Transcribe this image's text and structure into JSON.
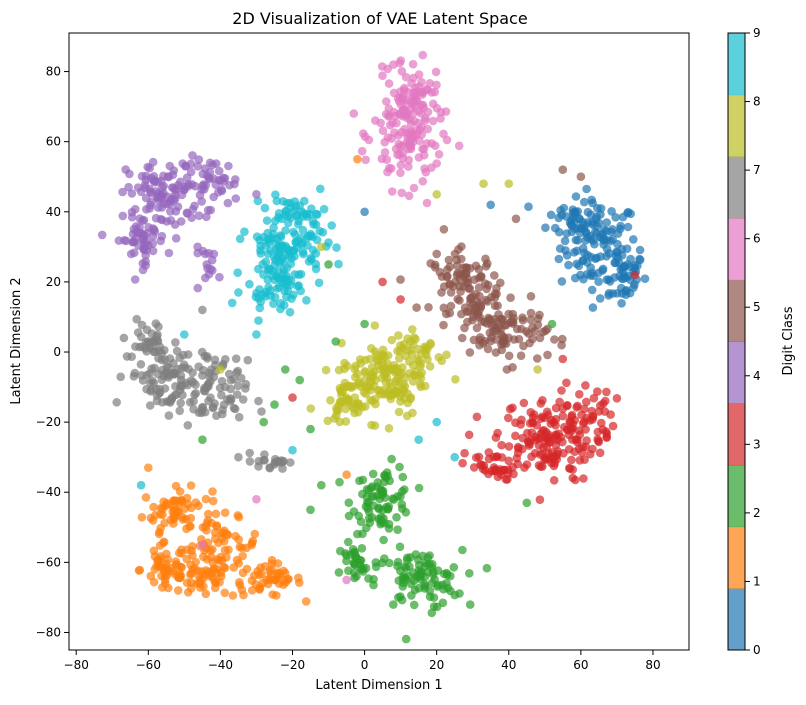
{
  "chart_data": {
    "type": "scatter",
    "title": "2D Visualization of VAE Latent Space",
    "xlabel": "Latent Dimension 1",
    "ylabel": "Latent Dimension 2",
    "xlim": [
      -82,
      90
    ],
    "ylim": [
      -85,
      91
    ],
    "xticks": [
      -80,
      -60,
      -40,
      -20,
      0,
      20,
      40,
      60,
      80
    ],
    "yticks": [
      -80,
      -60,
      -40,
      -20,
      0,
      20,
      40,
      60,
      80
    ],
    "xtick_labels": [
      "−80",
      "−60",
      "−40",
      "−20",
      "0",
      "20",
      "40",
      "60",
      "80"
    ],
    "ytick_labels": [
      "−80",
      "−60",
      "−40",
      "−20",
      "0",
      "20",
      "40",
      "60",
      "80"
    ],
    "grid": false,
    "marker_alpha": 0.7,
    "colorbar": {
      "label": "Digit Class",
      "range": [
        0,
        9
      ],
      "ticks": [
        0,
        1,
        2,
        3,
        4,
        5,
        6,
        7,
        8,
        9
      ],
      "tick_labels": [
        "0",
        "1",
        "2",
        "3",
        "4",
        "5",
        "6",
        "7",
        "8",
        "9"
      ],
      "colors": [
        "#1f77b4",
        "#ff7f0e",
        "#2ca02c",
        "#d62728",
        "#9467bd",
        "#8c564b",
        "#e377c2",
        "#7f7f7f",
        "#bcbd22",
        "#17becf"
      ]
    },
    "clusters": [
      {
        "class": 0,
        "blobs": [
          [
            65,
            30,
            9,
            11,
            110
          ],
          [
            71,
            22,
            6,
            8,
            40
          ],
          [
            58,
            38,
            6,
            5,
            30
          ]
        ]
      },
      {
        "class": 1,
        "blobs": [
          [
            -52,
            -45,
            8,
            5,
            60
          ],
          [
            -40,
            -55,
            9,
            6,
            60
          ],
          [
            -27,
            -65,
            8,
            4,
            50
          ],
          [
            -55,
            -62,
            6,
            6,
            50
          ],
          [
            -45,
            -65,
            7,
            4,
            40
          ]
        ]
      },
      {
        "class": 2,
        "blobs": [
          [
            5,
            -42,
            7,
            8,
            80
          ],
          [
            15,
            -65,
            10,
            7,
            90
          ],
          [
            -2,
            -60,
            5,
            5,
            30
          ]
        ]
      },
      {
        "class": 3,
        "blobs": [
          [
            50,
            -25,
            12,
            10,
            150
          ],
          [
            62,
            -18,
            6,
            8,
            40
          ],
          [
            35,
            -33,
            6,
            5,
            30
          ]
        ]
      },
      {
        "class": 4,
        "blobs": [
          [
            -55,
            45,
            9,
            8,
            100
          ],
          [
            -62,
            32,
            6,
            6,
            50
          ],
          [
            -42,
            48,
            6,
            6,
            40
          ],
          [
            -43,
            25,
            4,
            4,
            15
          ]
        ]
      },
      {
        "class": 5,
        "blobs": [
          [
            28,
            20,
            8,
            7,
            80
          ],
          [
            40,
            5,
            9,
            7,
            80
          ],
          [
            32,
            12,
            6,
            6,
            30
          ]
        ]
      },
      {
        "class": 6,
        "blobs": [
          [
            12,
            62,
            8,
            13,
            140
          ],
          [
            14,
            75,
            5,
            5,
            30
          ]
        ]
      },
      {
        "class": 7,
        "blobs": [
          [
            -55,
            -7,
            9,
            8,
            90
          ],
          [
            -42,
            -12,
            8,
            8,
            70
          ],
          [
            -60,
            3,
            6,
            5,
            30
          ],
          [
            -26,
            -31,
            4,
            2,
            20
          ]
        ]
      },
      {
        "class": 8,
        "blobs": [
          [
            5,
            -8,
            10,
            9,
            140
          ],
          [
            15,
            0,
            6,
            6,
            40
          ],
          [
            -5,
            -15,
            5,
            5,
            30
          ]
        ]
      },
      {
        "class": 9,
        "blobs": [
          [
            -22,
            30,
            9,
            10,
            120
          ],
          [
            -25,
            18,
            7,
            5,
            40
          ],
          [
            -18,
            40,
            6,
            4,
            30
          ]
        ]
      }
    ],
    "outliers": [
      [
        -10,
        25,
        2
      ],
      [
        -18,
        -8,
        2
      ],
      [
        -15,
        -22,
        2
      ],
      [
        0,
        8,
        2
      ],
      [
        -8,
        3,
        2
      ],
      [
        -22,
        -5,
        2
      ],
      [
        -12,
        -38,
        2
      ],
      [
        45,
        -43,
        2
      ],
      [
        52,
        8,
        2
      ],
      [
        33,
        48,
        8
      ],
      [
        40,
        48,
        8
      ],
      [
        20,
        45,
        8
      ],
      [
        -2,
        55,
        1
      ],
      [
        25,
        -30,
        9
      ],
      [
        -35,
        17,
        9
      ],
      [
        -40,
        -5,
        8
      ],
      [
        -30,
        5,
        9
      ],
      [
        10,
        15,
        3
      ],
      [
        48,
        -5,
        8
      ],
      [
        55,
        -2,
        3
      ],
      [
        -5,
        -35,
        1
      ],
      [
        -45,
        -55,
        6
      ],
      [
        -30,
        -42,
        6
      ],
      [
        -20,
        -13,
        3
      ],
      [
        22,
        35,
        5
      ],
      [
        -25,
        -15,
        2
      ],
      [
        -45,
        -25,
        2
      ],
      [
        -20,
        -28,
        9
      ],
      [
        -28,
        -20,
        2
      ],
      [
        20,
        28,
        5
      ],
      [
        8,
        82,
        6
      ],
      [
        -45,
        12,
        7
      ],
      [
        -50,
        5,
        9
      ],
      [
        15,
        -25,
        9
      ],
      [
        -60,
        -33,
        1
      ],
      [
        60,
        50,
        5
      ],
      [
        35,
        42,
        0
      ],
      [
        -12,
        30,
        8
      ],
      [
        5,
        20,
        3
      ],
      [
        -3,
        68,
        6
      ],
      [
        0,
        40,
        0
      ],
      [
        -30,
        45,
        4
      ],
      [
        55,
        52,
        5
      ],
      [
        42,
        38,
        5
      ],
      [
        75,
        22,
        3
      ],
      [
        20,
        -20,
        9
      ],
      [
        -15,
        -45,
        2
      ],
      [
        -5,
        -65,
        6
      ],
      [
        -35,
        -30,
        7
      ],
      [
        -62,
        -38,
        9
      ]
    ]
  }
}
